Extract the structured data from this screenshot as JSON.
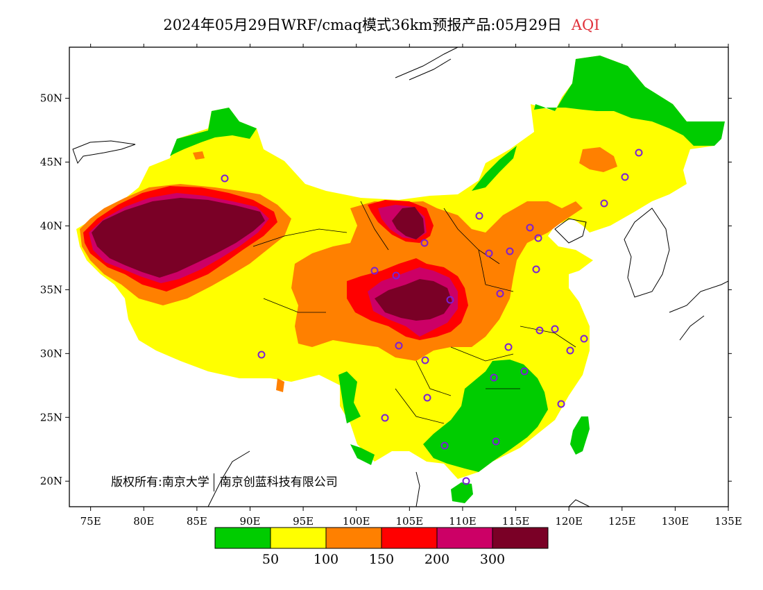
{
  "title": {
    "main": "2024年05月29日WRF/cmaq模式36km预报产品:05月29日",
    "variable": "AQI"
  },
  "map": {
    "lon_ticks": [
      "75E",
      "80E",
      "85E",
      "90E",
      "95E",
      "100E",
      "105E",
      "110E",
      "115E",
      "120E",
      "125E",
      "130E",
      "135E"
    ],
    "lat_ticks": [
      "20N",
      "25N",
      "30N",
      "35N",
      "40N",
      "45N",
      "50N"
    ],
    "lon_range": [
      73,
      135
    ],
    "lat_range": [
      18,
      54
    ],
    "copyright_owner_label": "版权所有:",
    "copyright_org1": "南京大学",
    "copyright_org2": "南京创蓝科技有限公司"
  },
  "legend": {
    "colors": [
      "#00cc00",
      "#ffff00",
      "#ff8000",
      "#ff0000",
      "#cc0066",
      "#7a0026"
    ],
    "labels": [
      "50",
      "100",
      "150",
      "200",
      "300"
    ]
  },
  "stations_color": "#7a1fd6"
}
